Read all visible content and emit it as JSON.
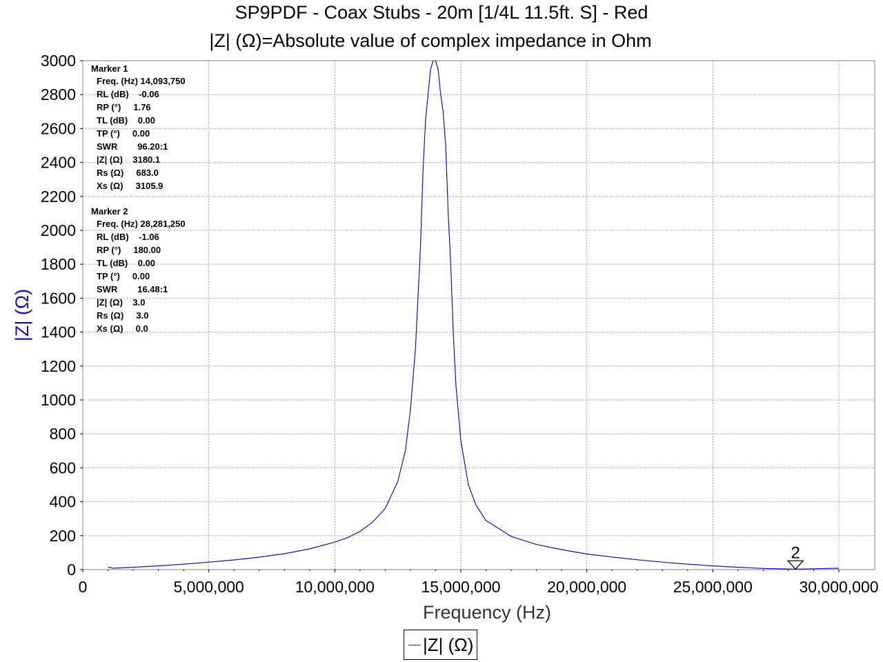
{
  "chart_data": {
    "type": "line",
    "title": "SP9PDF - Coax Stubs - 20m [1/4L 11.5ft. S] - Red",
    "subtitle": "|Z| (Ω)=Absolute value of complex impedance in Ohm",
    "xlabel": "Frequency (Hz)",
    "ylabel": "|Z| (Ω)",
    "xlim": [
      0,
      30000000
    ],
    "ylim": [
      0,
      3000
    ],
    "x_ticks": [
      "0",
      "5,000,000",
      "10,000,000",
      "15,000,000",
      "20,000,000",
      "25,000,000",
      "30,000,000"
    ],
    "y_ticks": [
      "0",
      "200",
      "400",
      "600",
      "800",
      "1000",
      "1200",
      "1400",
      "1600",
      "1800",
      "2000",
      "2200",
      "2400",
      "2600",
      "2800",
      "3000"
    ],
    "grid": true,
    "legend_position": "bottom-center",
    "series": [
      {
        "name": "|Z| (Ω)",
        "color": "#1010c8",
        "points": [
          [
            1000000,
            15
          ],
          [
            1200000,
            8
          ],
          [
            2000000,
            14
          ],
          [
            3000000,
            22
          ],
          [
            4000000,
            32
          ],
          [
            5000000,
            44
          ],
          [
            6000000,
            57
          ],
          [
            7000000,
            73
          ],
          [
            8000000,
            94
          ],
          [
            9000000,
            122
          ],
          [
            10000000,
            162
          ],
          [
            10500000,
            188
          ],
          [
            11000000,
            225
          ],
          [
            11500000,
            280
          ],
          [
            12000000,
            360
          ],
          [
            12500000,
            520
          ],
          [
            12800000,
            700
          ],
          [
            13000000,
            940
          ],
          [
            13200000,
            1300
          ],
          [
            13400000,
            1900
          ],
          [
            13500000,
            2350
          ],
          [
            13600000,
            2650
          ],
          [
            13700000,
            2800
          ],
          [
            13800000,
            2950
          ],
          [
            13900000,
            3000
          ],
          [
            14000000,
            3000
          ],
          [
            14100000,
            2950
          ],
          [
            14200000,
            2800
          ],
          [
            14300000,
            2700
          ],
          [
            14400000,
            2500
          ],
          [
            14500000,
            2100
          ],
          [
            14600000,
            1800
          ],
          [
            14700000,
            1400
          ],
          [
            14800000,
            1100
          ],
          [
            15000000,
            760
          ],
          [
            15300000,
            500
          ],
          [
            15600000,
            380
          ],
          [
            16000000,
            290
          ],
          [
            17000000,
            195
          ],
          [
            18000000,
            148
          ],
          [
            19000000,
            118
          ],
          [
            20000000,
            92
          ],
          [
            21000000,
            74
          ],
          [
            22000000,
            58
          ],
          [
            23000000,
            44
          ],
          [
            24000000,
            32
          ],
          [
            25000000,
            22
          ],
          [
            26000000,
            14
          ],
          [
            27000000,
            7
          ],
          [
            28281250,
            3
          ],
          [
            29000000,
            5
          ],
          [
            30000000,
            8
          ]
        ]
      }
    ],
    "markers": [
      {
        "label": "Marker 1",
        "lines": [
          "Freq. (Hz) 14,093,750",
          "RL (dB)    -0.06",
          "RP (°)     1.76",
          "TL (dB)    0.00",
          "TP (°)     0.00",
          "SWR        96.20:1",
          "|Z| (Ω)    3180.1",
          "Rs (Ω)     683.0",
          "Xs (Ω)     3105.9"
        ]
      },
      {
        "label": "Marker 2",
        "point_label": "2",
        "x": 28281250,
        "y": 3.0,
        "lines": [
          "Freq. (Hz) 28,281,250",
          "RL (dB)    -1.06",
          "RP (°)     180.00",
          "TL (dB)    0.00",
          "TP (°)     0.00",
          "SWR        16.48:1",
          "|Z| (Ω)    3.0",
          "Rs (Ω)     3.0",
          "Xs (Ω)     0.0"
        ]
      }
    ]
  }
}
